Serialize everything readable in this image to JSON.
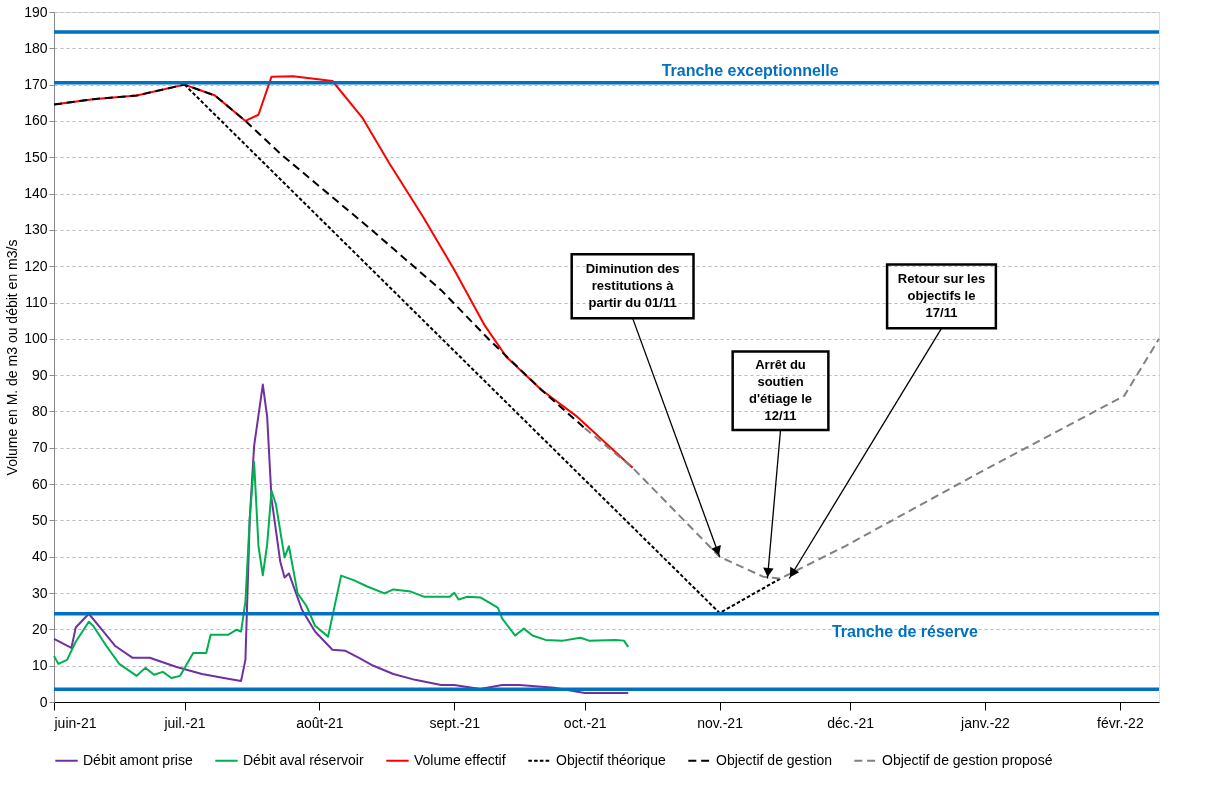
{
  "chart_data": {
    "type": "line",
    "ylabel": "Volume en M. de m3 ou débit en m3/s",
    "xlim": [
      "2021-06-01",
      "2022-02-10"
    ],
    "ylim": [
      0,
      190
    ],
    "xticks": [
      {
        "value": "2021-06-01",
        "label": "juin-21"
      },
      {
        "value": "2021-07-01",
        "label": "juil.-21"
      },
      {
        "value": "2021-08-01",
        "label": "août-21"
      },
      {
        "value": "2021-09-01",
        "label": "sept.-21"
      },
      {
        "value": "2021-10-01",
        "label": "oct.-21"
      },
      {
        "value": "2021-11-01",
        "label": "nov.-21"
      },
      {
        "value": "2021-12-01",
        "label": "déc.-21"
      },
      {
        "value": "2022-01-01",
        "label": "janv.-22"
      },
      {
        "value": "2022-02-01",
        "label": "févr.-22"
      }
    ],
    "yticks": [
      0,
      10,
      20,
      30,
      40,
      50,
      60,
      70,
      80,
      90,
      100,
      110,
      120,
      130,
      140,
      150,
      160,
      170,
      180,
      190
    ],
    "grid": "y",
    "legend": "bottom",
    "series": [
      {
        "name": "Débit amont prise",
        "color": "#7030a0",
        "line_style": "solid",
        "x": [
          "2021-06-01",
          "2021-06-05",
          "2021-06-06",
          "2021-06-09",
          "2021-06-12",
          "2021-06-15",
          "2021-06-19",
          "2021-06-23",
          "2021-06-29",
          "2021-07-05",
          "2021-07-11",
          "2021-07-14",
          "2021-07-15",
          "2021-07-16",
          "2021-07-17",
          "2021-07-19",
          "2021-07-20",
          "2021-07-21",
          "2021-07-23",
          "2021-07-24",
          "2021-07-25",
          "2021-07-28",
          "2021-07-31",
          "2021-08-04",
          "2021-08-07",
          "2021-08-10",
          "2021-08-13",
          "2021-08-18",
          "2021-08-23",
          "2021-08-29",
          "2021-09-01",
          "2021-09-07",
          "2021-09-12",
          "2021-09-16",
          "2021-09-24",
          "2021-10-01",
          "2021-10-11"
        ],
        "values": [
          17.4,
          14.9,
          20.5,
          24.3,
          19.9,
          15.5,
          12.2,
          12.2,
          9.7,
          7.7,
          6.4,
          5.8,
          11.6,
          50.6,
          70.5,
          87.4,
          78.5,
          56,
          38.7,
          34.3,
          35.4,
          25.4,
          19.4,
          14.4,
          14.1,
          12.2,
          10.2,
          7.7,
          6.1,
          4.7,
          4.7,
          3.6,
          4.7,
          4.7,
          3.9,
          2.5,
          2.5
        ]
      },
      {
        "name": "Débit aval réservoir",
        "color": "#00b050",
        "line_style": "solid",
        "x": [
          "2021-06-01",
          "2021-06-02",
          "2021-06-04",
          "2021-06-06",
          "2021-06-09",
          "2021-06-10",
          "2021-06-13",
          "2021-06-16",
          "2021-06-20",
          "2021-06-22",
          "2021-06-24",
          "2021-06-26",
          "2021-06-28",
          "2021-06-30",
          "2021-07-03",
          "2021-07-06",
          "2021-07-07",
          "2021-07-11",
          "2021-07-13",
          "2021-07-14",
          "2021-07-15",
          "2021-07-16",
          "2021-07-17",
          "2021-07-18",
          "2021-07-19",
          "2021-07-20",
          "2021-07-21",
          "2021-07-22",
          "2021-07-24",
          "2021-07-25",
          "2021-07-27",
          "2021-07-29",
          "2021-07-31",
          "2021-08-03",
          "2021-08-06",
          "2021-08-09",
          "2021-08-12",
          "2021-08-16",
          "2021-08-18",
          "2021-08-22",
          "2021-08-25",
          "2021-08-31",
          "2021-09-01",
          "2021-09-02",
          "2021-09-04",
          "2021-09-07",
          "2021-09-11",
          "2021-09-12",
          "2021-09-15",
          "2021-09-17",
          "2021-09-19",
          "2021-09-22",
          "2021-09-26",
          "2021-09-30",
          "2021-10-02",
          "2021-10-08",
          "2021-10-10",
          "2021-10-11"
        ],
        "values": [
          12.7,
          10.5,
          11.6,
          16.6,
          22.1,
          21,
          15.5,
          10.5,
          7.2,
          9.4,
          7.5,
          8.3,
          6.6,
          7.2,
          13.5,
          13.5,
          18.5,
          18.5,
          19.9,
          19.4,
          27.6,
          50.6,
          66.1,
          42.9,
          34.9,
          43.4,
          58.1,
          54.5,
          39.8,
          42.9,
          29.9,
          26.5,
          21,
          18,
          34.8,
          33.5,
          31.8,
          29.9,
          31,
          30.4,
          29,
          29,
          30.1,
          28.2,
          29,
          28.8,
          26,
          23,
          18.3,
          20.2,
          18.3,
          17.1,
          16.9,
          17.7,
          16.9,
          17.1,
          16.9,
          15.2
        ]
      },
      {
        "name": "Volume effectif",
        "color": "#ff0000",
        "line_style": "solid",
        "x": [
          "2021-06-01",
          "2021-06-10",
          "2021-06-20",
          "2021-07-01",
          "2021-07-08",
          "2021-07-15",
          "2021-07-18",
          "2021-07-21",
          "2021-07-26",
          "2021-08-04",
          "2021-08-11",
          "2021-08-17",
          "2021-08-25",
          "2021-09-01",
          "2021-09-08",
          "2021-09-13",
          "2021-09-21",
          "2021-09-29",
          "2021-10-12"
        ],
        "values": [
          164.5,
          166,
          167,
          170,
          167,
          160,
          161.7,
          172.2,
          172.3,
          171,
          160.7,
          148.5,
          133.3,
          119,
          103.7,
          95,
          86,
          78.8,
          64.5
        ]
      },
      {
        "name": "Objectif théorique",
        "color": "#000000",
        "line_style": "dashed",
        "x": [
          "2021-07-01",
          "2021-11-01",
          "2021-11-15"
        ],
        "values": [
          170,
          24.5,
          34
        ]
      },
      {
        "name": "Objectif de gestion",
        "color": "#000000",
        "line_style": "dashed",
        "x": [
          "2021-06-01",
          "2021-06-10",
          "2021-06-20",
          "2021-07-01",
          "2021-07-08",
          "2021-07-15",
          "2021-07-23",
          "2021-08-13",
          "2021-08-29",
          "2021-09-09",
          "2021-09-21",
          "2021-10-01"
        ],
        "values": [
          164.5,
          166,
          167,
          170,
          167,
          160,
          151,
          130,
          113.4,
          99.8,
          86,
          75.4
        ]
      },
      {
        "name": "Objectif de gestion proposé",
        "color": "#808080",
        "line_style": "dashed",
        "x": [
          "2021-10-01",
          "2021-10-12",
          "2021-11-01",
          "2021-11-11",
          "2021-11-15",
          "2021-11-30",
          "2022-01-01",
          "2022-02-02",
          "2022-02-10"
        ],
        "values": [
          75.4,
          64.5,
          40,
          34.5,
          34,
          43,
          64,
          84.3,
          100
        ]
      }
    ],
    "ref_lines": [
      {
        "axis": "y",
        "value": 184.5,
        "color": "#0070c0"
      },
      {
        "axis": "y",
        "value": 170.5,
        "label": "Tranche exceptionnelle",
        "color": "#0070c0"
      },
      {
        "axis": "y",
        "value": 24.3,
        "label": "Tranche de réserve",
        "color": "#0070c0"
      },
      {
        "axis": "y",
        "value": 3.5,
        "color": "#0070c0"
      }
    ],
    "annotations": [
      {
        "text": "Diminution des restitutions à partir du 01/11",
        "x": "2021-11-01",
        "y": 40
      },
      {
        "text": "Arrêt du soutien d'étiage le 12/11",
        "x": "2021-11-12",
        "y": 34
      },
      {
        "text": "Retour sur les objectifs le 17/11",
        "x": "2021-11-17",
        "y": 34
      }
    ]
  }
}
